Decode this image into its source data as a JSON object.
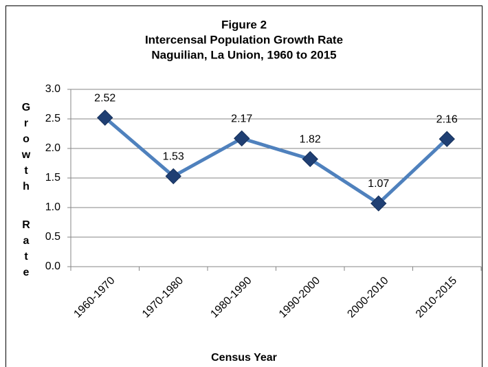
{
  "chart_data": {
    "type": "line",
    "title": [
      "Figure 2",
      "Intercensal Population Growth Rate",
      "Naguilian, La Union, 1960 to 2015"
    ],
    "x_label": "Census Year",
    "y_label": "Growth Rate",
    "categories": [
      "1960-1970",
      "1970-1980",
      "1980-1990",
      "1990-2000",
      "2000-2010",
      "2010-2015"
    ],
    "series": [
      {
        "name": "Growth Rate",
        "color": "#4f81bd",
        "marker_color": "#1f3f73",
        "values": [
          2.52,
          1.53,
          2.17,
          1.82,
          1.07,
          2.16
        ]
      }
    ],
    "ylim": [
      0,
      3
    ],
    "yticks": [
      {
        "value": 0,
        "label": "0.0"
      },
      0.5,
      {
        "value": 1,
        "label": "1.0"
      },
      1.5,
      {
        "value": 2,
        "label": "2.0"
      },
      2.5,
      {
        "value": 3,
        "label": "3.0"
      }
    ],
    "grid": true
  }
}
